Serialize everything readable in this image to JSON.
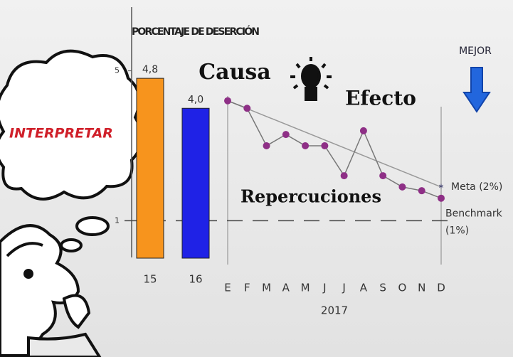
{
  "chart_data": {
    "type": "bar_line",
    "title": "PORCENTAJE DE DESERCIÓN",
    "bars": {
      "categories": [
        "15",
        "16"
      ],
      "values": [
        4.8,
        4.0
      ],
      "value_labels": [
        "4,8",
        "4,0"
      ],
      "colors": [
        "#f7941d",
        "#1f22e6"
      ]
    },
    "line": {
      "categories": [
        "E",
        "F",
        "M",
        "A",
        "M",
        "J",
        "J",
        "A",
        "S",
        "O",
        "N",
        "D"
      ],
      "values": [
        4.2,
        4.0,
        3.0,
        3.3,
        3.0,
        3.0,
        2.2,
        3.4,
        2.2,
        1.9,
        1.8,
        1.6
      ],
      "color": "#8e2f86"
    },
    "x_label": "2017",
    "ylim": [
      0,
      6.7
    ],
    "yticks": [
      1,
      5
    ],
    "trend_line": [
      4.2,
      1.9
    ],
    "meta_label": "Meta (2%)",
    "benchmark": {
      "value": 1,
      "label": "Benchmark",
      "sublabel": "(1%)"
    },
    "annotations": [
      "Causa",
      "Efecto",
      "Repercuciones",
      "MEJOR",
      "INTERPRETAR"
    ]
  }
}
